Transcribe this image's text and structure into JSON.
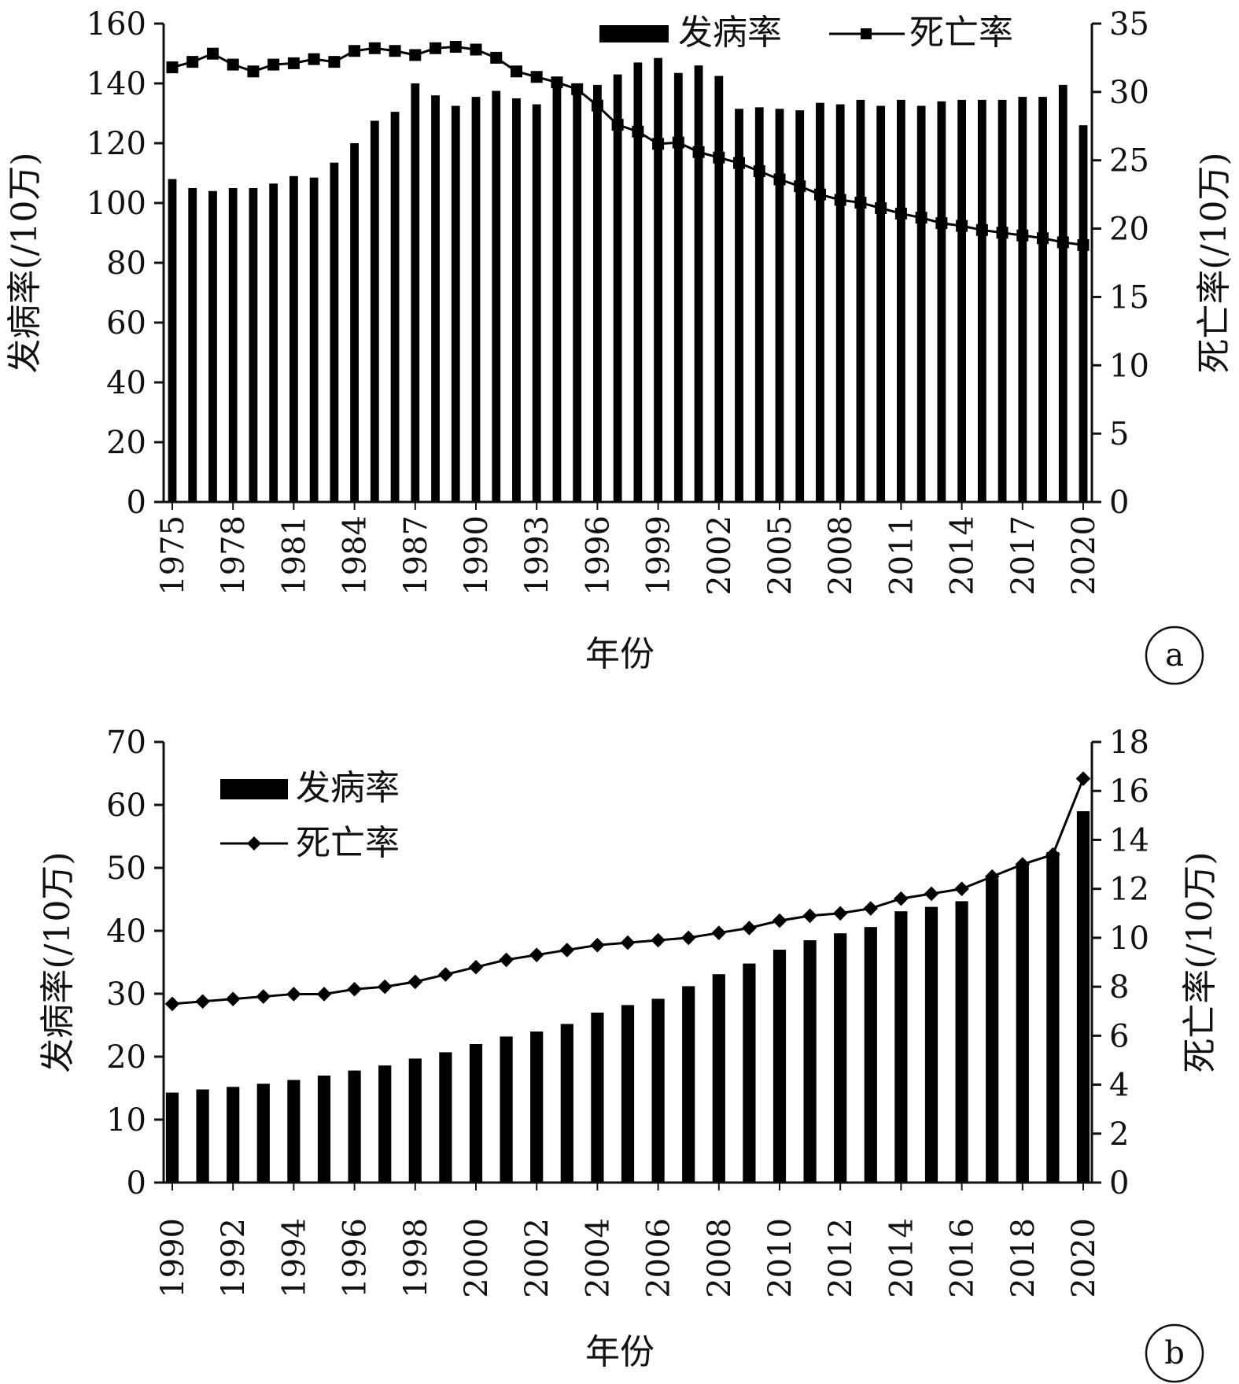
{
  "chart_data": [
    {
      "type": "bar+line",
      "panel_label": "a",
      "xlabel": "年份",
      "ylabel_left": "发病率(/10万)",
      "ylabel_right": "死亡率(/10万)",
      "ylim_left": [
        0,
        160
      ],
      "yticks_left": [
        0,
        20,
        40,
        60,
        80,
        100,
        120,
        140,
        160
      ],
      "ylim_right": [
        0,
        35
      ],
      "yticks_right": [
        0,
        5,
        10,
        15,
        20,
        25,
        30,
        35
      ],
      "xtick_labels": [
        "1975",
        "1978",
        "1981",
        "1984",
        "1987",
        "1990",
        "1993",
        "1996",
        "1999",
        "2002",
        "2005",
        "2008",
        "2011",
        "2014",
        "2017",
        "2020"
      ],
      "legend_position": "top",
      "grid": false,
      "x": [
        1975,
        1976,
        1977,
        1978,
        1979,
        1980,
        1981,
        1982,
        1983,
        1984,
        1985,
        1986,
        1987,
        1988,
        1989,
        1990,
        1991,
        1992,
        1993,
        1994,
        1995,
        1996,
        1997,
        1998,
        1999,
        2000,
        2001,
        2002,
        2003,
        2004,
        2005,
        2006,
        2007,
        2008,
        2009,
        2010,
        2011,
        2012,
        2013,
        2014,
        2015,
        2016,
        2017,
        2018,
        2019,
        2020
      ],
      "series": [
        {
          "name": "发病率",
          "kind": "bar",
          "axis": "left",
          "color": "#000000",
          "values": [
            108,
            105,
            104,
            105,
            105,
            106.5,
            109,
            108.5,
            113.5,
            120,
            127.5,
            130.5,
            140,
            136,
            132.5,
            135.5,
            137.5,
            135,
            133,
            138.5,
            140,
            139.5,
            143,
            147,
            148.5,
            143.5,
            146,
            142.5,
            131.5,
            132,
            131.5,
            131,
            133.5,
            133,
            134.5,
            132.5,
            134.5,
            132.5,
            134,
            134.5,
            134.5,
            134.5,
            135.5,
            135.5,
            139.5,
            126
          ]
        },
        {
          "name": "死亡率",
          "kind": "line",
          "marker": "square",
          "axis": "right",
          "color": "#000000",
          "values": [
            31.8,
            32.2,
            32.8,
            32,
            31.5,
            32,
            32.1,
            32.4,
            32.2,
            33,
            33.2,
            33,
            32.7,
            33.2,
            33.3,
            33.1,
            32.5,
            31.5,
            31.1,
            30.7,
            30.2,
            29,
            27.6,
            27.1,
            26.2,
            26.3,
            25.6,
            25.2,
            24.8,
            24.2,
            23.6,
            23.1,
            22.5,
            22.1,
            21.9,
            21.5,
            21.1,
            20.8,
            20.4,
            20.2,
            19.9,
            19.7,
            19.5,
            19.3,
            19,
            18.8
          ]
        }
      ]
    },
    {
      "type": "bar+line",
      "panel_label": "b",
      "xlabel": "年份",
      "ylabel_left": "发病率(/10万)",
      "ylabel_right": "死亡率(/10万)",
      "ylim_left": [
        0,
        70
      ],
      "yticks_left": [
        0,
        10,
        20,
        30,
        40,
        50,
        60,
        70
      ],
      "ylim_right": [
        0,
        18
      ],
      "yticks_right": [
        0,
        2,
        4,
        6,
        8,
        10,
        12,
        14,
        16,
        18
      ],
      "xtick_labels": [
        "1990",
        "1992",
        "1994",
        "1996",
        "1998",
        "2000",
        "2002",
        "2004",
        "2006",
        "2008",
        "2010",
        "2012",
        "2014",
        "2016",
        "2018",
        "2020"
      ],
      "legend_position": "top-left",
      "grid": false,
      "x": [
        1990,
        1991,
        1992,
        1993,
        1994,
        1995,
        1996,
        1997,
        1998,
        1999,
        2000,
        2001,
        2002,
        2003,
        2004,
        2005,
        2006,
        2007,
        2008,
        2009,
        2010,
        2011,
        2012,
        2013,
        2014,
        2015,
        2016,
        2017,
        2018,
        2019,
        2020
      ],
      "series": [
        {
          "name": "发病率",
          "kind": "bar",
          "axis": "left",
          "color": "#000000",
          "values": [
            14.3,
            14.8,
            15.2,
            15.7,
            16.3,
            17,
            17.8,
            18.6,
            19.7,
            20.7,
            22,
            23.2,
            24,
            25.2,
            27,
            28.2,
            29.2,
            31.2,
            33.1,
            34.8,
            37,
            38.5,
            39.6,
            40.6,
            43.1,
            43.8,
            44.7,
            48.3,
            50.5,
            52.5,
            59
          ]
        },
        {
          "name": "死亡率",
          "kind": "line",
          "marker": "diamond",
          "axis": "right",
          "color": "#000000",
          "values": [
            7.3,
            7.4,
            7.5,
            7.6,
            7.7,
            7.7,
            7.9,
            8,
            8.2,
            8.5,
            8.8,
            9.1,
            9.3,
            9.5,
            9.7,
            9.8,
            9.9,
            10,
            10.2,
            10.4,
            10.7,
            10.9,
            11,
            11.2,
            11.6,
            11.8,
            12,
            12.5,
            13,
            13.4,
            16.5
          ]
        }
      ]
    }
  ]
}
